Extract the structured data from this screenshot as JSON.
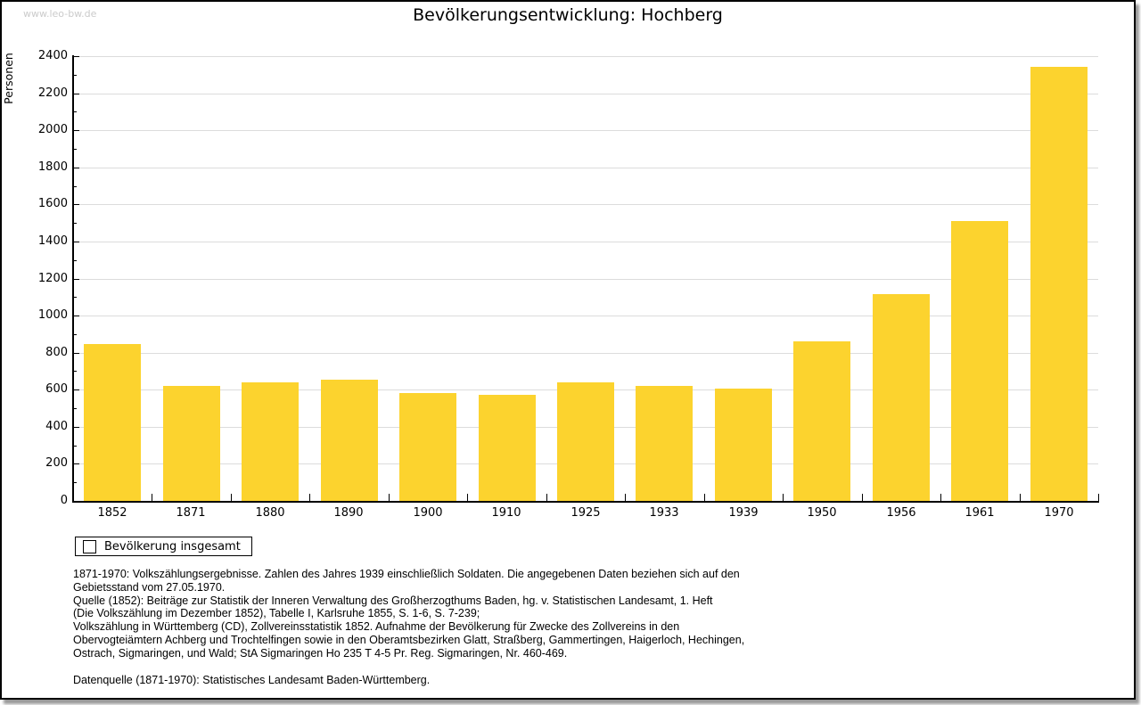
{
  "watermark": "www.leo-bw.de",
  "title": "Bevölkerungsentwicklung: Hochberg",
  "chart_data": {
    "type": "bar",
    "title": "Bevölkerungsentwicklung: Hochberg",
    "ylabel": "Personen",
    "xlabel": "",
    "categories": [
      "1852",
      "1871",
      "1880",
      "1890",
      "1900",
      "1910",
      "1925",
      "1933",
      "1939",
      "1950",
      "1956",
      "1961",
      "1970"
    ],
    "values": [
      845,
      620,
      640,
      655,
      580,
      570,
      640,
      620,
      608,
      862,
      1118,
      1510,
      2340
    ],
    "ylim": [
      0,
      2400
    ],
    "ytick_major": 200,
    "ytick_minor": 100,
    "grid": true,
    "legend_position": "bottom-left",
    "legend_label": "Bevölkerung insgesamt",
    "bar_color": "#FCD32E",
    "gridline_color": "#DCDCDC",
    "axis_color": "#000000"
  },
  "legend": {
    "label": "Bevölkerung insgesamt"
  },
  "footnotes": {
    "lines": [
      "1871-1970: Volkszählungsergebnisse. Zahlen des Jahres 1939 einschließlich Soldaten. Die angegebenen Daten beziehen sich auf den",
      "Gebietsstand vom 27.05.1970.",
      "Quelle (1852): Beiträge zur Statistik der Inneren Verwaltung des Großherzogthums Baden, hg. v. Statistischen Landesamt, 1. Heft",
      "(Die Volkszählung im Dezember 1852), Tabelle I, Karlsruhe 1855, S. 1-6, S. 7-239;",
      "Volkszählung in Württemberg (CD), Zollvereinsstatistik 1852. Aufnahme der Bevölkerung für Zwecke des Zollvereins in den",
      "Obervogteiämtern Achberg und Trochtelfingen sowie in den Oberamtsbezirken Glatt, Straßberg, Gammertingen, Haigerloch, Hechingen,",
      "Ostrach, Sigmaringen, und Wald; StA Sigmaringen Ho 235 T 4-5 Pr. Reg. Sigmaringen, Nr. 460-469."
    ],
    "datasource": "Datenquelle (1871-1970): Statistisches Landesamt Baden-Württemberg."
  },
  "colors": {
    "bar": "#FCD32E",
    "grid": "#DCDCDC",
    "axis": "#000000",
    "watermark": "#CBCBCB",
    "frame": "#000000"
  }
}
